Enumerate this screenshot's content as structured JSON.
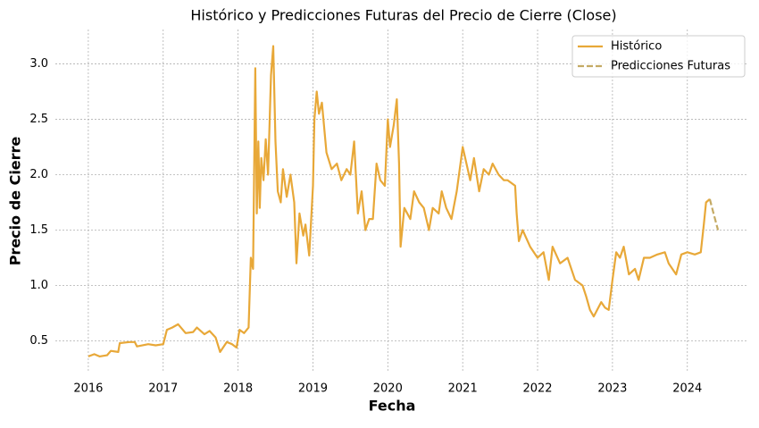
{
  "chart_data": {
    "type": "line",
    "title": "Histórico y Predicciones Futuras del Precio de Cierre (Close)",
    "x_label": "Fecha",
    "y_label": "Precio de Cierre",
    "xlim": [
      2015.56,
      2024.79
    ],
    "ylim": [
      0.23,
      3.31
    ],
    "xticks": [
      2016,
      2017,
      2018,
      2019,
      2020,
      2021,
      2022,
      2023,
      2024
    ],
    "yticks": [
      {
        "value": 0.5,
        "label": "0.5"
      },
      {
        "value": 1,
        "label": "1.0"
      },
      {
        "value": 1.5,
        "label": "1.5"
      },
      {
        "value": 2,
        "label": "2.0"
      },
      {
        "value": 2.5,
        "label": "2.5"
      },
      {
        "value": 3,
        "label": "3.0"
      }
    ],
    "grid": true,
    "legend": "upper right",
    "series": [
      {
        "name": "Histórico",
        "color": "#e8a838",
        "dash": "solid",
        "x": [
          2016.0,
          2016.08,
          2016.15,
          2016.25,
          2016.3,
          2016.4,
          2016.42,
          2016.55,
          2016.62,
          2016.65,
          2016.8,
          2016.9,
          2017.0,
          2017.05,
          2017.12,
          2017.2,
          2017.3,
          2017.4,
          2017.45,
          2017.55,
          2017.62,
          2017.7,
          2017.76,
          2017.85,
          2017.92,
          2017.98,
          2018.02,
          2018.08,
          2018.14,
          2018.17,
          2018.2,
          2018.23,
          2018.25,
          2018.27,
          2018.29,
          2018.31,
          2018.34,
          2018.37,
          2018.4,
          2018.44,
          2018.47,
          2018.5,
          2018.53,
          2018.57,
          2018.6,
          2018.65,
          2018.7,
          2018.75,
          2018.78,
          2018.82,
          2018.87,
          2018.9,
          2018.95,
          2019.0,
          2019.02,
          2019.05,
          2019.08,
          2019.12,
          2019.18,
          2019.25,
          2019.32,
          2019.38,
          2019.45,
          2019.5,
          2019.55,
          2019.6,
          2019.65,
          2019.7,
          2019.75,
          2019.8,
          2019.85,
          2019.9,
          2019.96,
          2020.0,
          2020.03,
          2020.08,
          2020.12,
          2020.15,
          2020.17,
          2020.22,
          2020.3,
          2020.35,
          2020.42,
          2020.48,
          2020.55,
          2020.6,
          2020.68,
          2020.72,
          2020.78,
          2020.85,
          2020.92,
          2021.0,
          2021.05,
          2021.1,
          2021.15,
          2021.22,
          2021.28,
          2021.35,
          2021.4,
          2021.48,
          2021.55,
          2021.6,
          2021.7,
          2021.72,
          2021.75,
          2021.8,
          2021.9,
          2022.0,
          2022.08,
          2022.15,
          2022.2,
          2022.3,
          2022.4,
          2022.5,
          2022.6,
          2022.65,
          2022.7,
          2022.75,
          2022.85,
          2022.9,
          2022.95,
          2023.0,
          2023.05,
          2023.1,
          2023.15,
          2023.22,
          2023.3,
          2023.35,
          2023.42,
          2023.5,
          2023.6,
          2023.7,
          2023.75,
          2023.85,
          2023.92,
          2024.0,
          2024.1,
          2024.18,
          2024.22,
          2024.25,
          2024.3
        ],
        "values": [
          0.36,
          0.38,
          0.36,
          0.37,
          0.41,
          0.4,
          0.48,
          0.49,
          0.49,
          0.45,
          0.47,
          0.46,
          0.47,
          0.6,
          0.62,
          0.65,
          0.57,
          0.58,
          0.62,
          0.56,
          0.59,
          0.53,
          0.4,
          0.49,
          0.47,
          0.44,
          0.6,
          0.57,
          0.62,
          1.25,
          1.15,
          2.96,
          1.65,
          2.3,
          1.7,
          2.15,
          1.95,
          2.32,
          2.0,
          2.9,
          3.16,
          2.3,
          1.85,
          1.75,
          2.05,
          1.8,
          2.0,
          1.75,
          1.2,
          1.65,
          1.45,
          1.55,
          1.27,
          1.9,
          2.5,
          2.75,
          2.55,
          2.65,
          2.2,
          2.05,
          2.1,
          1.95,
          2.05,
          2.0,
          2.3,
          1.65,
          1.85,
          1.5,
          1.6,
          1.6,
          2.1,
          1.95,
          1.9,
          2.5,
          2.25,
          2.45,
          2.68,
          2.1,
          1.35,
          1.7,
          1.6,
          1.85,
          1.75,
          1.7,
          1.5,
          1.7,
          1.65,
          1.85,
          1.7,
          1.6,
          1.85,
          2.25,
          2.1,
          1.95,
          2.15,
          1.85,
          2.05,
          2.0,
          2.1,
          2.0,
          1.95,
          1.95,
          1.9,
          1.65,
          1.4,
          1.5,
          1.35,
          1.25,
          1.3,
          1.05,
          1.35,
          1.2,
          1.25,
          1.05,
          1.0,
          0.9,
          0.78,
          0.72,
          0.85,
          0.8,
          0.78,
          1.05,
          1.3,
          1.25,
          1.35,
          1.1,
          1.15,
          1.05,
          1.25,
          1.25,
          1.28,
          1.3,
          1.2,
          1.1,
          1.28,
          1.3,
          1.28,
          1.3,
          1.55,
          1.75,
          1.78
        ]
      },
      {
        "name": "Predicciones Futuras",
        "color": "#c4aa64",
        "dash": "dashed",
        "x": [
          2024.3,
          2024.35,
          2024.41
        ],
        "values": [
          1.78,
          1.65,
          1.5
        ]
      }
    ]
  }
}
